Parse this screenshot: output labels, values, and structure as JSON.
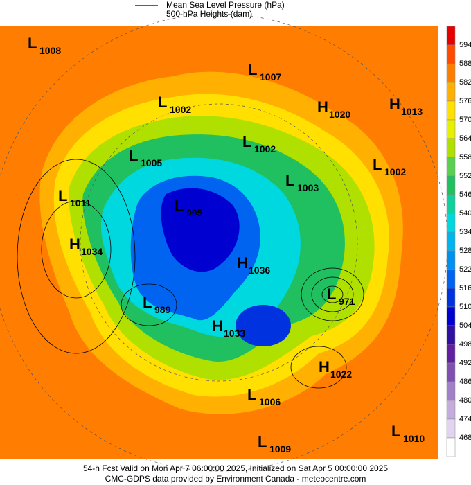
{
  "header": {
    "line_label": "Mean Sea Level Pressure (hPa)",
    "fill_label": "500-hPa Heights (dam)"
  },
  "centers": [
    {
      "kind": "L",
      "value": 1008
    },
    {
      "kind": "L",
      "value": 1007
    },
    {
      "kind": "L",
      "value": 1002
    },
    {
      "kind": "H",
      "value": 1020
    },
    {
      "kind": "H",
      "value": 1013
    },
    {
      "kind": "L",
      "value": 1002
    },
    {
      "kind": "L",
      "value": 1005
    },
    {
      "kind": "L",
      "value": 1002
    },
    {
      "kind": "L",
      "value": 1003
    },
    {
      "kind": "L",
      "value": 1011
    },
    {
      "kind": "L",
      "value": 995
    },
    {
      "kind": "H",
      "value": 1034
    },
    {
      "kind": "H",
      "value": 1036
    },
    {
      "kind": "L",
      "value": 971
    },
    {
      "kind": "L",
      "value": 989
    },
    {
      "kind": "H",
      "value": 1033
    },
    {
      "kind": "H",
      "value": 1022
    },
    {
      "kind": "L",
      "value": 1006
    },
    {
      "kind": "L",
      "value": 1009
    },
    {
      "kind": "L",
      "value": 1010
    }
  ],
  "colorbar": {
    "ticks": [
      594,
      588,
      582,
      576,
      570,
      564,
      558,
      552,
      546,
      540,
      534,
      528,
      522,
      516,
      510,
      504,
      498,
      492,
      486,
      480,
      474,
      468
    ],
    "colors": [
      "#e60000",
      "#ff4a00",
      "#ff7d00",
      "#ffb000",
      "#ffe000",
      "#e6f000",
      "#b0e000",
      "#5ad050",
      "#20c060",
      "#10d0a0",
      "#00d8e0",
      "#00b4f0",
      "#0090f0",
      "#0064f0",
      "#0032e0",
      "#0000d0",
      "#3010a0",
      "#6020a0",
      "#8050b0",
      "#a080c8",
      "#c4acdc",
      "#e2d4f0",
      "#ffffff"
    ]
  },
  "footer": {
    "line1": "54-h Fcst Valid on Mon Apr  7 06:00:00 2025, Initialized on Sat Apr  5 00:00:00 2025",
    "line2": "CMC-GDPS data provided by Environment Canada - meteocentre.com"
  }
}
